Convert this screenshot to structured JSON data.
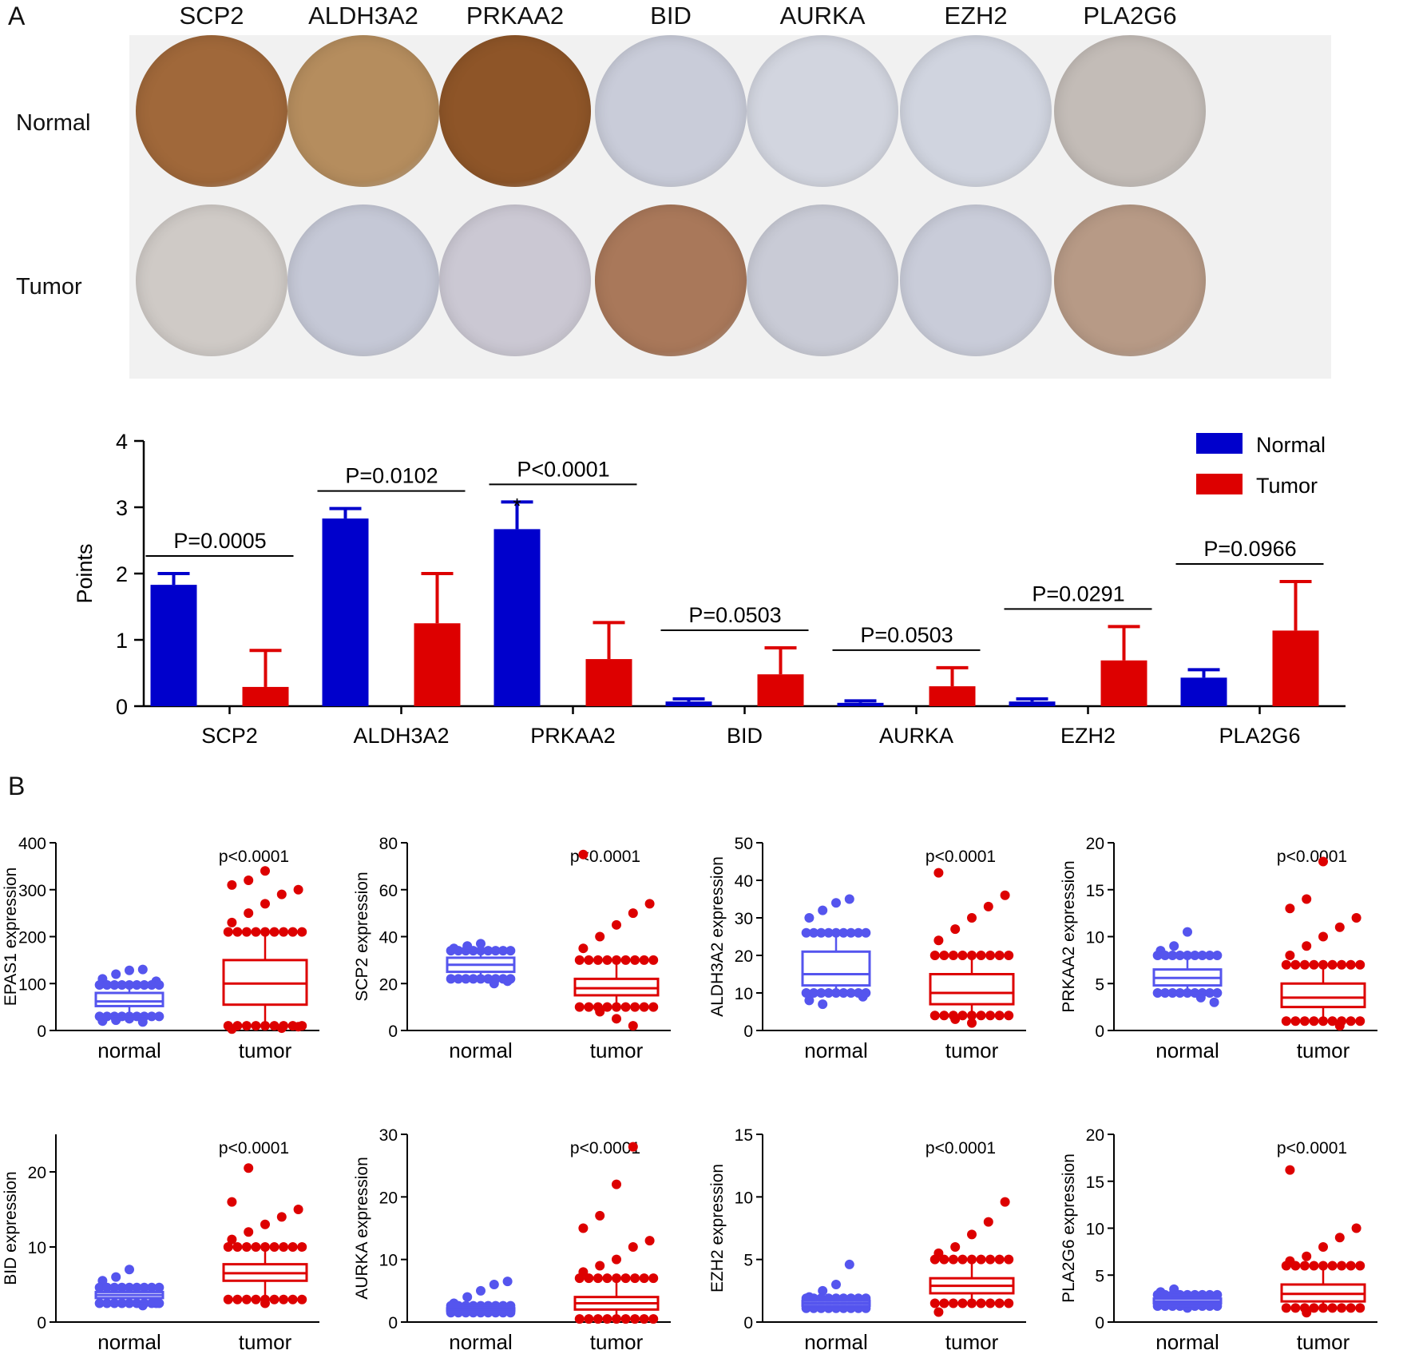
{
  "panel_a": {
    "letter": "A",
    "row_labels": {
      "normal": "Normal",
      "tumor": "Tumor"
    },
    "genes": [
      "SCP2",
      "ALDH3A2",
      "PRKAA2",
      "BID",
      "AURKA",
      "EZH2",
      "PLA2G6"
    ],
    "stain_colors": {
      "normal": [
        "#a0683a",
        "#b58d5e",
        "#8e5528",
        "#c9ccd9",
        "#d2d5df",
        "#d0d4df",
        "#c3bcb7"
      ],
      "tumor": [
        "#cfcac6",
        "#c5c8d6",
        "#cbc8d3",
        "#a9785a",
        "#c9cbd6",
        "#c9ccd9",
        "#b79a86"
      ]
    }
  },
  "panel_b": {
    "letter": "B"
  },
  "chart_data": [
    {
      "type": "bar",
      "title": "",
      "ylabel": "Points",
      "xlabel": "",
      "ylim": [
        0,
        4
      ],
      "yticks": [
        "0",
        "1",
        "2",
        "3",
        "4"
      ],
      "categories": [
        "SCP2",
        "ALDH3A2",
        "PRKAA2",
        "BID",
        "AURKA",
        "EZH2",
        "PLA2G6"
      ],
      "series": [
        {
          "name": "Normal",
          "color": "#0000cc",
          "values": [
            1.83,
            2.83,
            2.67,
            0.07,
            0.05,
            0.07,
            0.43
          ],
          "errors": [
            0.17,
            0.15,
            0.41,
            0.04,
            0.03,
            0.04,
            0.12
          ]
        },
        {
          "name": "Tumor",
          "color": "#dd0000",
          "values": [
            0.29,
            1.25,
            0.71,
            0.48,
            0.3,
            0.69,
            1.14
          ],
          "errors": [
            0.55,
            0.75,
            0.55,
            0.4,
            0.28,
            0.51,
            0.74
          ]
        }
      ],
      "pvalues": [
        "P=0.0005",
        "P=0.0102",
        "P<0.0001",
        "P=0.0503",
        "P=0.0503",
        "P=0.0291",
        "P=0.0966"
      ],
      "annotations": [
        "*"
      ],
      "legend": "top-right"
    },
    {
      "type": "box",
      "ylabel": "EPAS1 expression",
      "categories": [
        "normal",
        "tumor"
      ],
      "ylim": [
        0,
        400
      ],
      "yticks": [
        "0",
        "100",
        "200",
        "300",
        "400"
      ],
      "pvalue": "p<0.0001",
      "groups": [
        {
          "name": "normal",
          "color": "#5555ee",
          "whisker_low": 30,
          "q1": 52,
          "median": 62,
          "q3": 80,
          "whisker_high": 97,
          "outliers": [
            110,
            120,
            128,
            130,
            105,
            20,
            22,
            25,
            18
          ]
        },
        {
          "name": "tumor",
          "color": "#dd0000",
          "whisker_low": 10,
          "q1": 55,
          "median": 100,
          "q3": 150,
          "whisker_high": 210,
          "outliers": [
            230,
            250,
            270,
            290,
            300,
            310,
            320,
            340,
            5,
            8,
            3
          ]
        }
      ]
    },
    {
      "type": "box",
      "ylabel": "SCP2 expression",
      "categories": [
        "normal",
        "tumor"
      ],
      "ylim": [
        0,
        80
      ],
      "yticks": [
        "0",
        "20",
        "40",
        "60",
        "80"
      ],
      "pvalue": "p<0.0001",
      "groups": [
        {
          "name": "normal",
          "color": "#5555ee",
          "whisker_low": 22,
          "q1": 25,
          "median": 28,
          "q3": 31,
          "whisker_high": 34,
          "outliers": [
            35,
            36,
            37,
            20,
            21
          ]
        },
        {
          "name": "tumor",
          "color": "#dd0000",
          "whisker_low": 10,
          "q1": 15,
          "median": 18,
          "q3": 22,
          "whisker_high": 30,
          "outliers": [
            35,
            40,
            45,
            50,
            54,
            75,
            8,
            5,
            2
          ]
        }
      ]
    },
    {
      "type": "box",
      "ylabel": "ALDH3A2 expression",
      "categories": [
        "normal",
        "tumor"
      ],
      "ylim": [
        0,
        50
      ],
      "yticks": [
        "0",
        "10",
        "20",
        "30",
        "40",
        "50"
      ],
      "pvalue": "p<0.0001",
      "groups": [
        {
          "name": "normal",
          "color": "#5555ee",
          "whisker_low": 10,
          "q1": 12,
          "median": 15,
          "q3": 21,
          "whisker_high": 26,
          "outliers": [
            30,
            32,
            34,
            35,
            9,
            8,
            7
          ]
        },
        {
          "name": "tumor",
          "color": "#dd0000",
          "whisker_low": 4,
          "q1": 7,
          "median": 10,
          "q3": 15,
          "whisker_high": 20,
          "outliers": [
            24,
            27,
            30,
            33,
            36,
            42,
            3,
            2
          ]
        }
      ]
    },
    {
      "type": "box",
      "ylabel": "PRKAA2 expression",
      "categories": [
        "normal",
        "tumor"
      ],
      "ylim": [
        0,
        20
      ],
      "yticks": [
        "0",
        "5",
        "10",
        "15",
        "20"
      ],
      "pvalue": "p<0.0001",
      "groups": [
        {
          "name": "normal",
          "color": "#5555ee",
          "whisker_low": 4,
          "q1": 4.8,
          "median": 5.6,
          "q3": 6.5,
          "whisker_high": 8,
          "outliers": [
            8.5,
            9,
            10.5,
            3.5,
            3
          ]
        },
        {
          "name": "tumor",
          "color": "#dd0000",
          "whisker_low": 1,
          "q1": 2.5,
          "median": 3.5,
          "q3": 5,
          "whisker_high": 7,
          "outliers": [
            8,
            9,
            10,
            11,
            12,
            13,
            14,
            18,
            0.5
          ]
        }
      ]
    },
    {
      "type": "box",
      "ylabel": "BID expression",
      "categories": [
        "normal",
        "tumor"
      ],
      "ylim": [
        0,
        25
      ],
      "yticks": [
        "0",
        "10",
        "20"
      ],
      "pvalue": "p<0.0001",
      "groups": [
        {
          "name": "normal",
          "color": "#5555ee",
          "whisker_low": 2.5,
          "q1": 3.2,
          "median": 3.6,
          "q3": 4.0,
          "whisker_high": 4.6,
          "outliers": [
            5.5,
            6,
            7,
            2.2,
            2.5
          ]
        },
        {
          "name": "tumor",
          "color": "#dd0000",
          "whisker_low": 3,
          "q1": 5.5,
          "median": 6.5,
          "q3": 7.7,
          "whisker_high": 10,
          "outliers": [
            11,
            12,
            13,
            14,
            15,
            16,
            20.5,
            2.5
          ]
        }
      ]
    },
    {
      "type": "box",
      "ylabel": "AURKA expression",
      "categories": [
        "normal",
        "tumor"
      ],
      "ylim": [
        0,
        30
      ],
      "yticks": [
        "0",
        "10",
        "20",
        "30"
      ],
      "pvalue": "p<0.0001",
      "groups": [
        {
          "name": "normal",
          "color": "#5555ee",
          "whisker_low": 1.5,
          "q1": 1.8,
          "median": 2.0,
          "q3": 2.2,
          "whisker_high": 2.6,
          "outliers": [
            3,
            4,
            5,
            6,
            6.5
          ]
        },
        {
          "name": "tumor",
          "color": "#dd0000",
          "whisker_low": 0.5,
          "q1": 2,
          "median": 3,
          "q3": 4,
          "whisker_high": 7,
          "outliers": [
            8,
            9,
            10,
            12,
            13,
            15,
            17,
            22,
            28
          ]
        }
      ]
    },
    {
      "type": "box",
      "ylabel": "EZH2 expression",
      "categories": [
        "normal",
        "tumor"
      ],
      "ylim": [
        0,
        15
      ],
      "yticks": [
        "0",
        "5",
        "10",
        "15"
      ],
      "pvalue": "p<0.0001",
      "groups": [
        {
          "name": "normal",
          "color": "#5555ee",
          "whisker_low": 1.1,
          "q1": 1.3,
          "median": 1.5,
          "q3": 1.7,
          "whisker_high": 1.9,
          "outliers": [
            2,
            2.5,
            3,
            4.6
          ]
        },
        {
          "name": "tumor",
          "color": "#dd0000",
          "whisker_low": 1.5,
          "q1": 2.3,
          "median": 2.9,
          "q3": 3.5,
          "whisker_high": 5,
          "outliers": [
            5.5,
            6,
            7,
            8,
            9.6,
            0.8
          ]
        }
      ]
    },
    {
      "type": "box",
      "ylabel": "PLA2G6 expression",
      "categories": [
        "normal",
        "tumor"
      ],
      "ylim": [
        0,
        20
      ],
      "yticks": [
        "0",
        "5",
        "10",
        "15",
        "20"
      ],
      "pvalue": "p<0.0001",
      "groups": [
        {
          "name": "normal",
          "color": "#5555ee",
          "whisker_low": 1.7,
          "q1": 2.0,
          "median": 2.2,
          "q3": 2.5,
          "whisker_high": 2.9,
          "outliers": [
            3.2,
            3.5,
            1.5
          ]
        },
        {
          "name": "tumor",
          "color": "#dd0000",
          "whisker_low": 1.5,
          "q1": 2.2,
          "median": 3,
          "q3": 4,
          "whisker_high": 6,
          "outliers": [
            6.5,
            7,
            8,
            9,
            10,
            16.2,
            1
          ]
        }
      ]
    }
  ]
}
